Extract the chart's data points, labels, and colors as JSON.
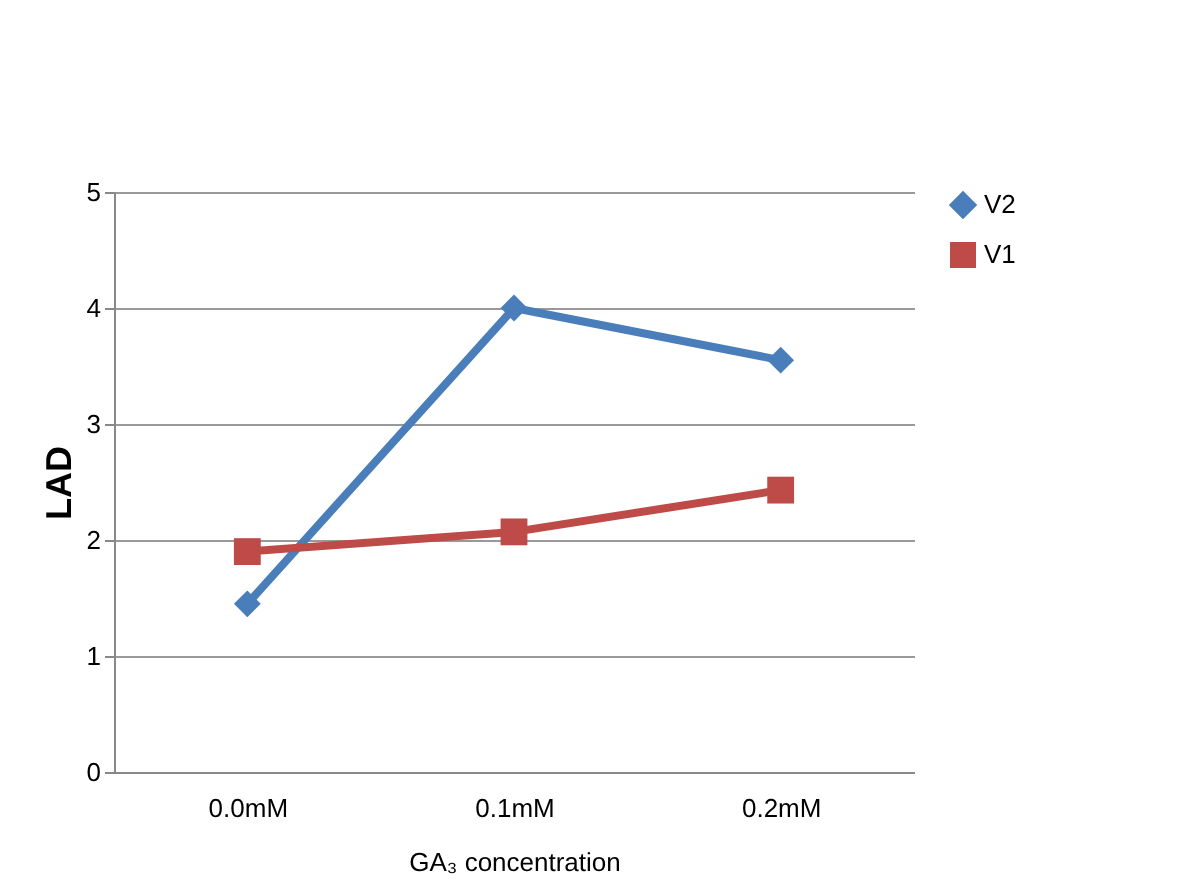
{
  "chart_data": {
    "type": "line",
    "xlabel": "GA₃ concentration",
    "ylabel": "LAD",
    "categories": [
      "0.0mM",
      "0.1mM",
      "0.2mM"
    ],
    "series": [
      {
        "name": "V2",
        "color": "#4a7ebb",
        "marker": "diamond",
        "values": [
          1.45,
          4.0,
          3.55
        ]
      },
      {
        "name": "V1",
        "color": "#be4b48",
        "marker": "square",
        "values": [
          1.9,
          2.07,
          2.43
        ]
      }
    ],
    "ylim": [
      0,
      5
    ],
    "yticks": [
      0,
      1,
      2,
      3,
      4,
      5
    ],
    "grid": "y",
    "legend": "right"
  }
}
